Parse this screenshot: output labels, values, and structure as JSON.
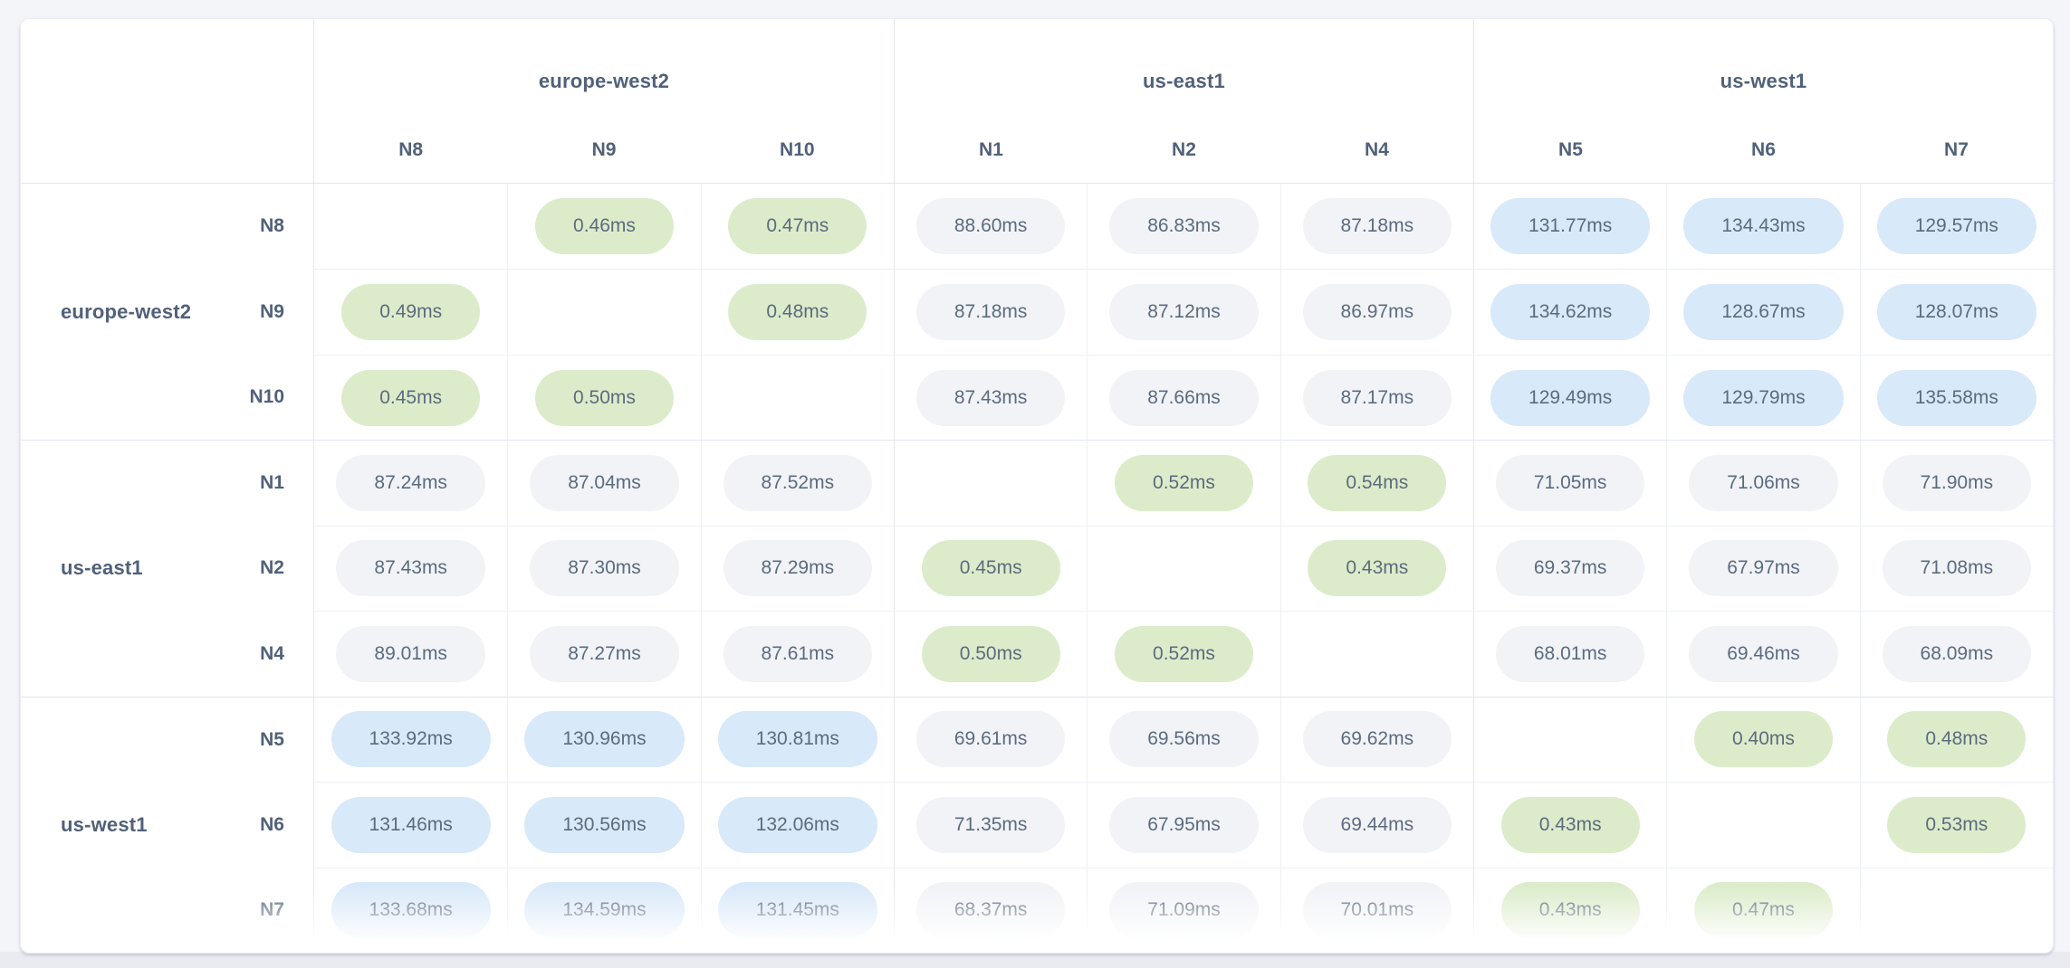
{
  "app": {
    "title": "Network latency matrix"
  },
  "colors": {
    "same_region_pill": "#dcecca",
    "high_latency_pill": "#d8e9f9",
    "neutral_pill": "#f1f3f7",
    "value_text": "#5c6b7f",
    "label_text": "#51617a",
    "page_background": "#f3f5f9",
    "grid_line": "#e3e7ef"
  },
  "table": {
    "col_groups": [
      {
        "region": "europe-west2",
        "nodes": [
          "N8",
          "N9",
          "N10"
        ]
      },
      {
        "region": "us-east1",
        "nodes": [
          "N1",
          "N2",
          "N4"
        ]
      },
      {
        "region": "us-west1",
        "nodes": [
          "N5",
          "N6",
          "N7"
        ]
      }
    ],
    "row_groups": [
      {
        "region": "europe-west2",
        "rows": [
          {
            "node": "N8",
            "cells": [
              null,
              {
                "v": "0.46ms",
                "c": "green"
              },
              {
                "v": "0.47ms",
                "c": "green"
              },
              {
                "v": "88.60ms",
                "c": "neutral"
              },
              {
                "v": "86.83ms",
                "c": "neutral"
              },
              {
                "v": "87.18ms",
                "c": "neutral"
              },
              {
                "v": "131.77ms",
                "c": "blue"
              },
              {
                "v": "134.43ms",
                "c": "blue"
              },
              {
                "v": "129.57ms",
                "c": "blue"
              }
            ]
          },
          {
            "node": "N9",
            "cells": [
              {
                "v": "0.49ms",
                "c": "green"
              },
              null,
              {
                "v": "0.48ms",
                "c": "green"
              },
              {
                "v": "87.18ms",
                "c": "neutral"
              },
              {
                "v": "87.12ms",
                "c": "neutral"
              },
              {
                "v": "86.97ms",
                "c": "neutral"
              },
              {
                "v": "134.62ms",
                "c": "blue"
              },
              {
                "v": "128.67ms",
                "c": "blue"
              },
              {
                "v": "128.07ms",
                "c": "blue"
              }
            ]
          },
          {
            "node": "N10",
            "cells": [
              {
                "v": "0.45ms",
                "c": "green"
              },
              {
                "v": "0.50ms",
                "c": "green"
              },
              null,
              {
                "v": "87.43ms",
                "c": "neutral"
              },
              {
                "v": "87.66ms",
                "c": "neutral"
              },
              {
                "v": "87.17ms",
                "c": "neutral"
              },
              {
                "v": "129.49ms",
                "c": "blue"
              },
              {
                "v": "129.79ms",
                "c": "blue"
              },
              {
                "v": "135.58ms",
                "c": "blue"
              }
            ]
          }
        ]
      },
      {
        "region": "us-east1",
        "rows": [
          {
            "node": "N1",
            "cells": [
              {
                "v": "87.24ms",
                "c": "neutral"
              },
              {
                "v": "87.04ms",
                "c": "neutral"
              },
              {
                "v": "87.52ms",
                "c": "neutral"
              },
              null,
              {
                "v": "0.52ms",
                "c": "green"
              },
              {
                "v": "0.54ms",
                "c": "green"
              },
              {
                "v": "71.05ms",
                "c": "neutral"
              },
              {
                "v": "71.06ms",
                "c": "neutral"
              },
              {
                "v": "71.90ms",
                "c": "neutral"
              }
            ]
          },
          {
            "node": "N2",
            "cells": [
              {
                "v": "87.43ms",
                "c": "neutral"
              },
              {
                "v": "87.30ms",
                "c": "neutral"
              },
              {
                "v": "87.29ms",
                "c": "neutral"
              },
              {
                "v": "0.45ms",
                "c": "green"
              },
              null,
              {
                "v": "0.43ms",
                "c": "green"
              },
              {
                "v": "69.37ms",
                "c": "neutral"
              },
              {
                "v": "67.97ms",
                "c": "neutral"
              },
              {
                "v": "71.08ms",
                "c": "neutral"
              }
            ]
          },
          {
            "node": "N4",
            "cells": [
              {
                "v": "89.01ms",
                "c": "neutral"
              },
              {
                "v": "87.27ms",
                "c": "neutral"
              },
              {
                "v": "87.61ms",
                "c": "neutral"
              },
              {
                "v": "0.50ms",
                "c": "green"
              },
              {
                "v": "0.52ms",
                "c": "green"
              },
              null,
              {
                "v": "68.01ms",
                "c": "neutral"
              },
              {
                "v": "69.46ms",
                "c": "neutral"
              },
              {
                "v": "68.09ms",
                "c": "neutral"
              }
            ]
          }
        ]
      },
      {
        "region": "us-west1",
        "rows": [
          {
            "node": "N5",
            "cells": [
              {
                "v": "133.92ms",
                "c": "blue"
              },
              {
                "v": "130.96ms",
                "c": "blue"
              },
              {
                "v": "130.81ms",
                "c": "blue"
              },
              {
                "v": "69.61ms",
                "c": "neutral"
              },
              {
                "v": "69.56ms",
                "c": "neutral"
              },
              {
                "v": "69.62ms",
                "c": "neutral"
              },
              null,
              {
                "v": "0.40ms",
                "c": "green"
              },
              {
                "v": "0.48ms",
                "c": "green"
              }
            ]
          },
          {
            "node": "N6",
            "cells": [
              {
                "v": "131.46ms",
                "c": "blue"
              },
              {
                "v": "130.56ms",
                "c": "blue"
              },
              {
                "v": "132.06ms",
                "c": "blue"
              },
              {
                "v": "71.35ms",
                "c": "neutral"
              },
              {
                "v": "67.95ms",
                "c": "neutral"
              },
              {
                "v": "69.44ms",
                "c": "neutral"
              },
              {
                "v": "0.43ms",
                "c": "green"
              },
              null,
              {
                "v": "0.53ms",
                "c": "green"
              }
            ]
          },
          {
            "node": "N7",
            "cells": [
              {
                "v": "133.68ms",
                "c": "blue"
              },
              {
                "v": "134.59ms",
                "c": "blue"
              },
              {
                "v": "131.45ms",
                "c": "blue"
              },
              {
                "v": "68.37ms",
                "c": "neutral"
              },
              {
                "v": "71.09ms",
                "c": "neutral"
              },
              {
                "v": "70.01ms",
                "c": "neutral"
              },
              {
                "v": "0.43ms",
                "c": "green"
              },
              {
                "v": "0.47ms",
                "c": "green"
              },
              null
            ]
          }
        ]
      }
    ]
  }
}
